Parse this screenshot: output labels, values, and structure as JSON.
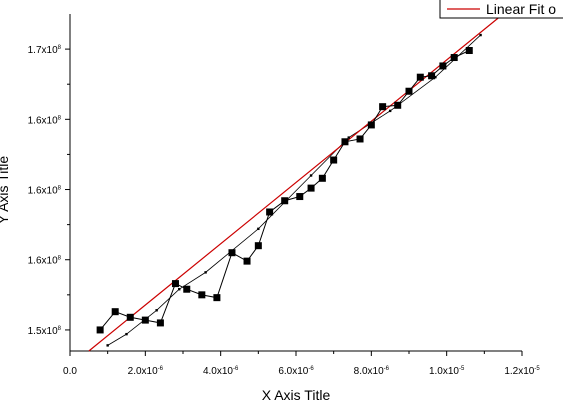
{
  "chart_data": {
    "type": "scatter",
    "xlabel": "X Axis Title",
    "ylabel": "Y Axis Title",
    "xlim": [
      0,
      1.2e-05
    ],
    "ylim": [
      148.5,
      172.5
    ],
    "x_ticks": [
      {
        "value": 0,
        "label": "0.0"
      },
      {
        "value": 2e-06,
        "label": "2.0x10",
        "exp": "-6"
      },
      {
        "value": 4e-06,
        "label": "4.0x10",
        "exp": "-6"
      },
      {
        "value": 6e-06,
        "label": "6.0x10",
        "exp": "-6"
      },
      {
        "value": 8e-06,
        "label": "8.0x10",
        "exp": "-6"
      },
      {
        "value": 1e-05,
        "label": "1.0x10",
        "exp": "-5"
      },
      {
        "value": 1.2e-05,
        "label": "1.2x10",
        "exp": "-5"
      }
    ],
    "y_ticks": [
      {
        "value": 150,
        "label": "1.5x10",
        "exp": "8"
      },
      {
        "value": 155,
        "label": "1.6x10",
        "exp": "8"
      },
      {
        "value": 160,
        "label": "1.6x10",
        "exp": "8"
      },
      {
        "value": 165,
        "label": "1.6x10",
        "exp": "8"
      },
      {
        "value": 170,
        "label": "1.7x10",
        "exp": "8"
      }
    ],
    "legend": {
      "label": "Linear Fit o",
      "position": "top-right"
    },
    "series": [
      {
        "name": "",
        "style": "square-markers-connected",
        "x": [
          8e-07,
          1.2e-06,
          1.6e-06,
          2e-06,
          2.4e-06,
          2.8e-06,
          3.1e-06,
          3.5e-06,
          3.9e-06,
          4.3e-06,
          4.7e-06,
          5e-06,
          5.3e-06,
          5.7e-06,
          6.1e-06,
          6.4e-06,
          6.7e-06,
          7e-06,
          7.3e-06,
          7.7e-06,
          8e-06,
          8.3e-06,
          8.7e-06,
          9e-06,
          9.3e-06,
          9.6e-06,
          9.9e-06,
          1.02e-05,
          1.06e-05
        ],
        "y": [
          150.0,
          151.3,
          150.9,
          150.7,
          150.5,
          153.3,
          152.9,
          152.5,
          152.3,
          155.5,
          154.9,
          156.0,
          158.4,
          159.2,
          159.5,
          160.1,
          160.8,
          162.1,
          163.4,
          163.6,
          164.6,
          165.9,
          166.0,
          167.0,
          168.0,
          168.1,
          168.8,
          169.4,
          169.9
        ]
      },
      {
        "name": "",
        "style": "small-dots-connected",
        "x": [
          1e-06,
          1.5e-06,
          2.3e-06,
          2.9e-06,
          3.6e-06,
          5e-06,
          6.4e-06,
          7.4e-06,
          8.5e-06,
          9.7e-06,
          1.09e-05
        ],
        "y": [
          148.9,
          149.7,
          151.4,
          152.9,
          154.1,
          157.2,
          161.0,
          163.7,
          165.6,
          168.0,
          171.0
        ]
      }
    ],
    "fit_line": {
      "name": "Linear Fit o",
      "color": "#cc0000",
      "x": [
        5e-07,
        1.15e-05
      ],
      "y": [
        148.5,
        172.5
      ]
    }
  }
}
